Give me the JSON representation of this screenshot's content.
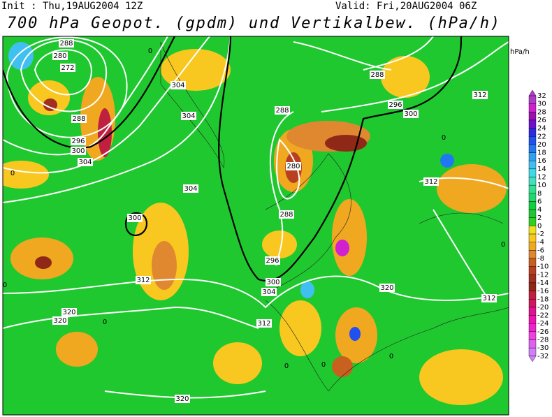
{
  "header": {
    "init": "Init : Thu,19AUG2004 12Z",
    "valid": "Valid: Fri,20AUG2004 06Z",
    "title": "700 hPa Geopot. (gpdm) und Vertikalbew. (hPa/h)"
  },
  "unit": "hPa/h",
  "colorbar": {
    "ticks": [
      32,
      30,
      28,
      26,
      24,
      22,
      20,
      18,
      16,
      14,
      12,
      10,
      8,
      6,
      4,
      2,
      0,
      -2,
      -4,
      -6,
      -8,
      -10,
      -12,
      -14,
      -16,
      -18,
      -20,
      -22,
      -24,
      -26,
      -28,
      -30,
      -32
    ],
    "colors": [
      "#b03cc8",
      "#d020d0",
      "#9c10b0",
      "#7010c8",
      "#3028e0",
      "#2050f0",
      "#2078f0",
      "#30a0f0",
      "#40c0f0",
      "#40d8e8",
      "#40e0c0",
      "#30e090",
      "#20d870",
      "#10d040",
      "#20c830",
      "#30d020",
      "#f0e020",
      "#f8c820",
      "#f0a820",
      "#e08830",
      "#c86020",
      "#b84020",
      "#a03020",
      "#902818",
      "#c02040",
      "#d01860",
      "#e01090",
      "#f010b0",
      "#f020d0",
      "#f040e0",
      "#e060f0",
      "#d080f8"
    ]
  },
  "contour_labels": [
    288,
    280,
    272,
    288,
    296,
    300,
    304,
    304,
    304,
    304,
    300,
    312,
    320,
    320,
    288,
    280,
    288,
    296,
    300,
    304,
    312,
    320,
    320,
    288,
    296,
    300,
    312,
    312,
    312,
    0,
    0,
    0,
    0,
    0,
    0,
    0,
    0,
    0
  ]
}
